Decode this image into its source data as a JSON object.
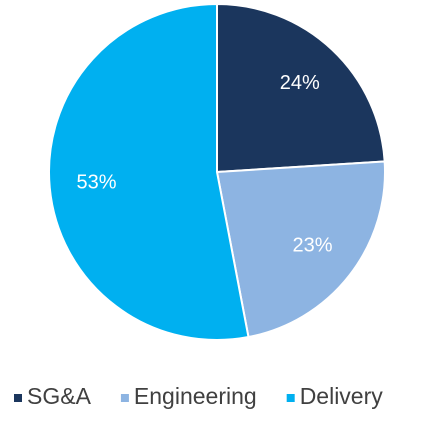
{
  "chart_data": {
    "type": "pie",
    "categories": [
      "SG&A",
      "Engineering",
      "Delivery"
    ],
    "values": [
      24,
      23,
      53
    ],
    "value_labels": [
      "24%",
      "23%",
      "53%"
    ],
    "colors": [
      "#1b365d",
      "#8db4e2",
      "#00b0f0"
    ],
    "legend": "bottom"
  }
}
